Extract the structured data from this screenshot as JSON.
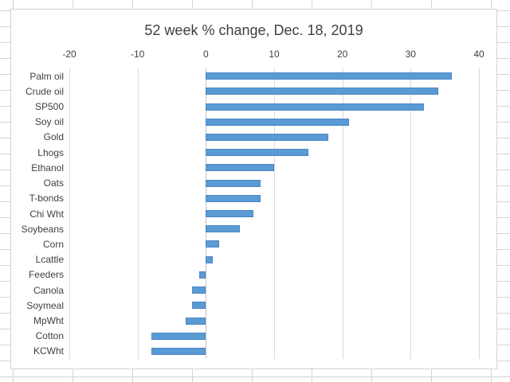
{
  "chart_data": {
    "type": "bar",
    "orientation": "horizontal",
    "title": "52 week % change, Dec. 18, 2019",
    "categories": [
      "Palm oil",
      "Crude oil",
      "SP500",
      "Soy oil",
      "Gold",
      "Lhogs",
      "Ethanol",
      "Oats",
      "T-bonds",
      "Chi Wht",
      "Soybeans",
      "Corn",
      "Lcattle",
      "Feeders",
      "Canola",
      "Soymeal",
      "MpWht",
      "Cotton",
      "KCWht"
    ],
    "values": [
      36,
      34,
      32,
      21,
      18,
      15,
      10,
      8,
      8,
      7,
      5,
      2,
      1,
      -1,
      -2,
      -2,
      -3,
      -8,
      -8
    ],
    "xlim": [
      -20,
      40
    ],
    "x_ticks": [
      -20,
      -10,
      0,
      10,
      20,
      30,
      40
    ],
    "x_axis_position": "top",
    "grid": "vertical",
    "legend": "none",
    "colors": {
      "bar": "#5B9BD5",
      "bar_border": "#4A86C6",
      "gridline": "#D9D9D9",
      "axis_line": "#C6C6C6",
      "text": "#3F3F3F",
      "chart_border": "#D2D2D2",
      "sheet_gridline": "#D4D4D4",
      "background": "#FFFFFF"
    }
  }
}
